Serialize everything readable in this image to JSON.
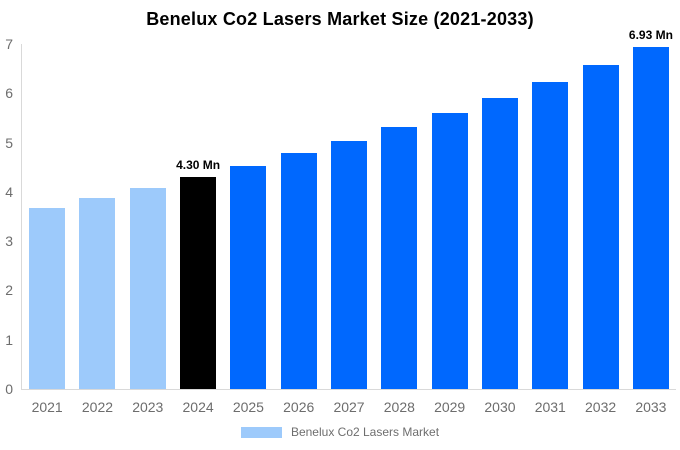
{
  "title": "Benelux Co2 Lasers Market Size (2021-2033)",
  "legend": {
    "label": "Benelux Co2 Lasers Market",
    "swatch_color": "#9DCAFB"
  },
  "colors": {
    "historical_bar": "#9DCAFB",
    "base_year_bar": "#000000",
    "forecast_bar": "#0068FE",
    "axis_line": "#d9d9d9",
    "tick_text": "#6d6d6d",
    "annotation_text": "#000000"
  },
  "chart_data": {
    "type": "bar",
    "title": "Benelux Co2 Lasers Market Size (2021-2033)",
    "series_name": "Benelux Co2 Lasers Market",
    "unit": "Mn",
    "categories": [
      "2021",
      "2022",
      "2023",
      "2024",
      "2025",
      "2026",
      "2027",
      "2028",
      "2029",
      "2030",
      "2031",
      "2032",
      "2033"
    ],
    "values": [
      3.67,
      3.87,
      4.08,
      4.3,
      4.53,
      4.78,
      5.04,
      5.31,
      5.6,
      5.91,
      6.23,
      6.57,
      6.93
    ],
    "bar_colors": [
      "#9DCAFB",
      "#9DCAFB",
      "#9DCAFB",
      "#000000",
      "#0068FE",
      "#0068FE",
      "#0068FE",
      "#0068FE",
      "#0068FE",
      "#0068FE",
      "#0068FE",
      "#0068FE",
      "#0068FE"
    ],
    "annotations": [
      {
        "index": 3,
        "text": "4.30 Mn"
      },
      {
        "index": 12,
        "text": "6.93 Mn"
      }
    ],
    "xlabel": "",
    "ylabel": "",
    "ylim": [
      0,
      7
    ],
    "yticks": [
      0,
      1,
      2,
      3,
      4,
      5,
      6,
      7
    ],
    "grid": false,
    "legend_position": "bottom"
  }
}
